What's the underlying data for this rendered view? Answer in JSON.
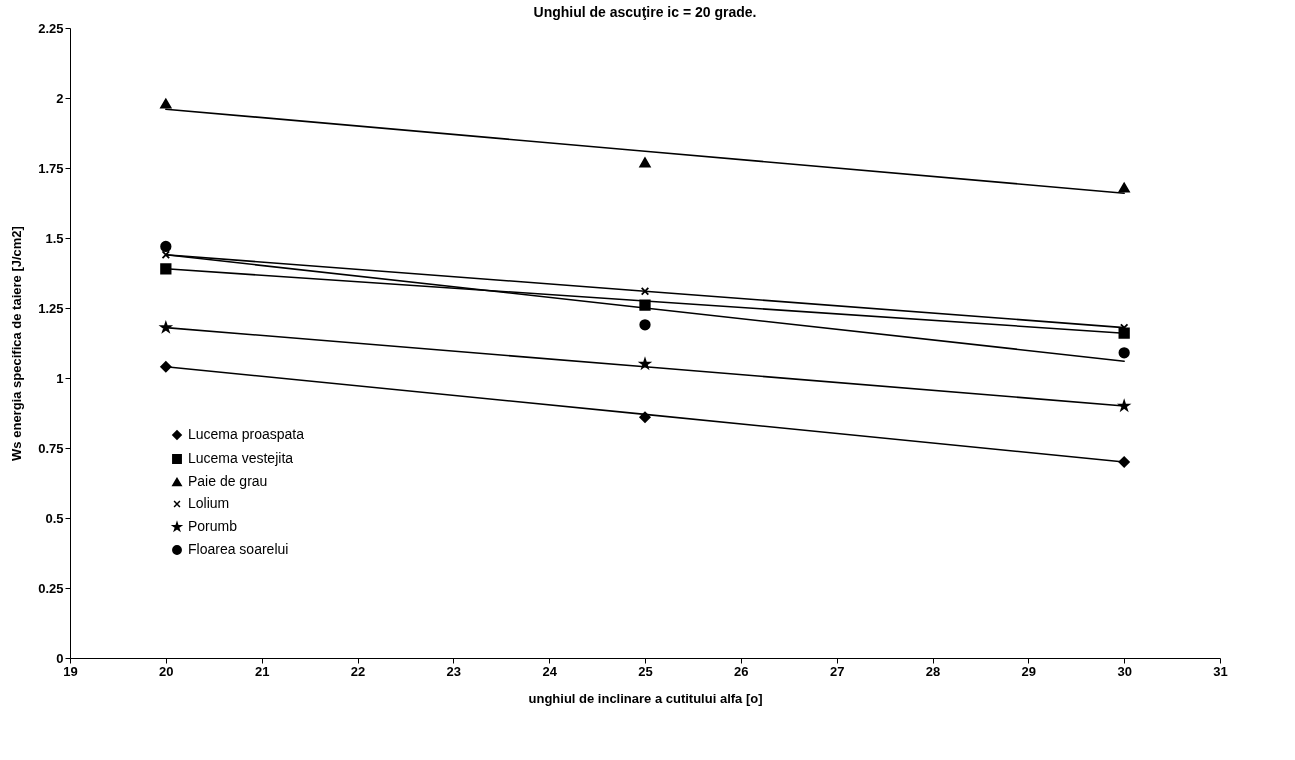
{
  "chart_data": {
    "type": "scatter",
    "title": "Unghiul de ascuţire ic = 20 grade.",
    "xlabel": "unghiul de inclinare a cutitului alfa [o]",
    "ylabel": "Ws energia specifica de taiere  [J/cm2]",
    "x": [
      20,
      25,
      30
    ],
    "xlim": [
      19,
      31
    ],
    "xticks": [
      19,
      20,
      21,
      22,
      23,
      24,
      25,
      26,
      27,
      28,
      29,
      30,
      31
    ],
    "ylim": [
      0,
      2.25
    ],
    "yticks": [
      0,
      0.25,
      0.5,
      0.75,
      1,
      1.25,
      1.5,
      1.75,
      2,
      2.25
    ],
    "grid": false,
    "legend": "bottom left",
    "series": [
      {
        "name": "Lucema proaspata",
        "color": "#000000",
        "marker": "diamond",
        "values": [
          1.04,
          0.86,
          0.7
        ]
      },
      {
        "name": "Lucema vestejita",
        "color": "#000000",
        "marker": "square",
        "values": [
          1.39,
          1.26,
          1.16
        ]
      },
      {
        "name": "Paie de grau",
        "color": "#000000",
        "marker": "triangle",
        "values": [
          1.98,
          1.77,
          1.68
        ]
      },
      {
        "name": "Lolium",
        "color": "#000000",
        "marker": "cross",
        "values": [
          1.44,
          1.31,
          1.18
        ]
      },
      {
        "name": "Porumb",
        "color": "#000000",
        "marker": "star",
        "values": [
          1.18,
          1.05,
          0.9
        ]
      },
      {
        "name": "Floarea soarelui",
        "color": "#000000",
        "marker": "circle",
        "values": [
          1.47,
          1.19,
          1.09
        ]
      },
      {
        "type": "line",
        "color": "#000000",
        "values": [
          1.04,
          0.87,
          0.7
        ]
      },
      {
        "type": "line",
        "color": "#000000",
        "values": [
          1.39,
          1.275,
          1.16
        ]
      },
      {
        "type": "line",
        "color": "#000000",
        "values": [
          1.96,
          1.81,
          1.66
        ]
      },
      {
        "type": "line",
        "color": "#000000",
        "values": [
          1.44,
          1.31,
          1.18
        ]
      },
      {
        "type": "line",
        "color": "#000000",
        "values": [
          1.18,
          1.04,
          0.9
        ]
      },
      {
        "type": "line",
        "color": "#000000",
        "values": [
          1.44,
          1.25,
          1.06
        ]
      }
    ]
  }
}
